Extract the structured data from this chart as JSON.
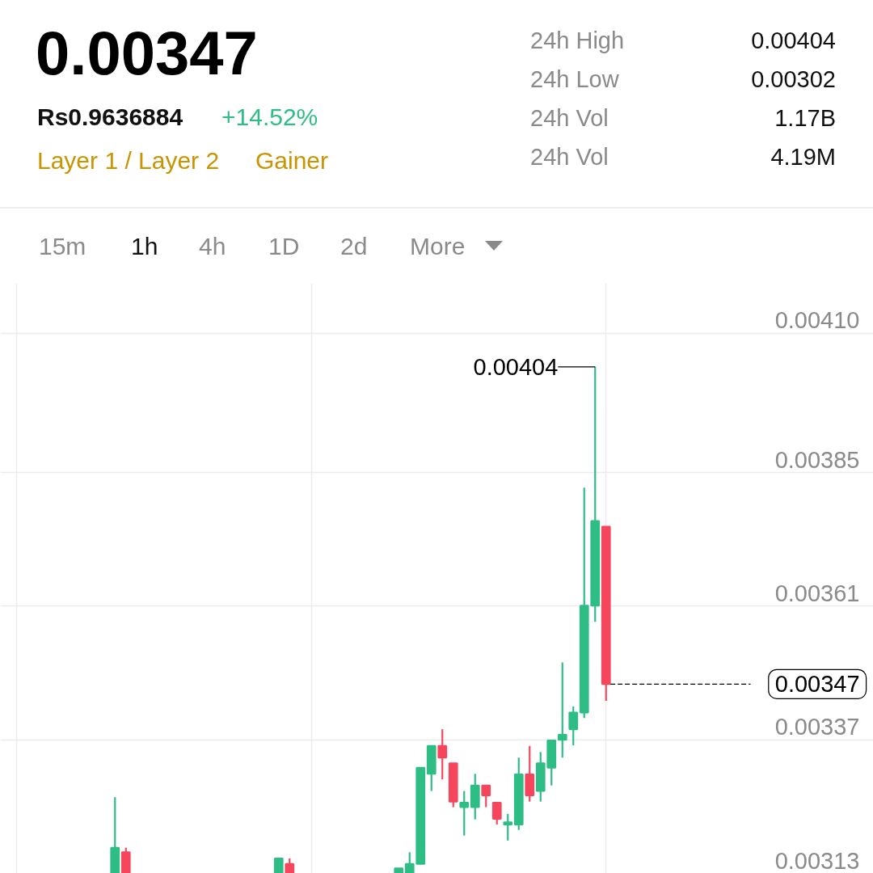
{
  "chart_data": {
    "type": "candlestick",
    "title": "0.00347",
    "categories": [
      null,
      null,
      null,
      null,
      null,
      null,
      null,
      null,
      null,
      null,
      null,
      null,
      null,
      null,
      null,
      null,
      null,
      null,
      null,
      null,
      null,
      null,
      null,
      null,
      null,
      null,
      null,
      null,
      null,
      null,
      null,
      null,
      null,
      null,
      null,
      null,
      null,
      null,
      null,
      null,
      null,
      null,
      null,
      null,
      null,
      null,
      null,
      null,
      null,
      null,
      null,
      null,
      null,
      null,
      null,
      null,
      null,
      null,
      null,
      null,
      null,
      null,
      null,
      null,
      null,
      null,
      null,
      null,
      null,
      null,
      null,
      null,
      null,
      null,
      null,
      null,
      null,
      null,
      null,
      null
    ],
    "ohlc": [
      null,
      null,
      null,
      null,
      null,
      null,
      null,
      null,
      null,
      null,
      [
        0.00313,
        0.003267,
        0.00313,
        0.003176
      ],
      [
        0.003168,
        0.003176,
        0.00313,
        0.00313
      ],
      null,
      null,
      null,
      null,
      null,
      null,
      null,
      null,
      null,
      null,
      null,
      null,
      null,
      [
        0.00313,
        0.003157,
        0.00313,
        0.003157
      ],
      [
        0.003147,
        0.003157,
        0.00313,
        0.00313
      ],
      null,
      null,
      null,
      null,
      null,
      null,
      null,
      null,
      null,
      [
        0.00313,
        0.003139,
        0.00313,
        0.003139
      ],
      [
        0.00313,
        0.003168,
        0.00313,
        0.003147
      ],
      [
        0.003147,
        0.00332,
        0.003147,
        0.00332
      ],
      [
        0.003309,
        0.003359,
        0.003278,
        0.003359
      ],
      [
        0.003359,
        0.003389,
        0.003299,
        0.003338
      ],
      [
        0.003328,
        0.003328,
        0.003249,
        0.003259
      ],
      [
        0.003249,
        0.003278,
        0.003198,
        0.003257
      ],
      [
        0.003249,
        0.003309,
        0.003227,
        0.003288
      ],
      [
        0.003288,
        0.003288,
        0.003249,
        0.00327
      ],
      [
        0.003257,
        0.003257,
        0.003218,
        0.003228
      ],
      [
        0.003218,
        0.003237,
        0.003189,
        0.003222
      ],
      [
        0.003218,
        0.003338,
        0.003208,
        0.003308
      ],
      [
        0.003308,
        0.003359,
        0.003259,
        0.00327
      ],
      [
        0.003278,
        0.003348,
        0.003259,
        0.003328
      ],
      [
        0.00332,
        0.003369,
        0.003288,
        0.003369
      ],
      [
        0.00337,
        0.003509,
        0.003338,
        0.003379
      ],
      [
        0.003389,
        0.00343,
        0.00336,
        0.003419
      ],
      [
        0.003419,
        0.003823,
        0.003409,
        0.003611
      ],
      [
        0.003611,
        0.00404,
        0.003582,
        0.003763
      ],
      [
        0.003753,
        0.003753,
        0.00344,
        0.00347
      ],
      null,
      null,
      null,
      null,
      null,
      null,
      null,
      null,
      null,
      null,
      null,
      null,
      null,
      null,
      null,
      null,
      null,
      null,
      null,
      null,
      null,
      null,
      null,
      null
    ],
    "colors": [
      null,
      null,
      null,
      null,
      null,
      null,
      null,
      null,
      null,
      null,
      "#2ebd85",
      "#f6465d",
      null,
      null,
      null,
      null,
      null,
      null,
      null,
      null,
      null,
      null,
      null,
      null,
      null,
      "#2ebd85",
      "#f6465d",
      null,
      null,
      null,
      null,
      null,
      null,
      null,
      null,
      null,
      "#2ebd85",
      "#2ebd85",
      "#2ebd85",
      "#2ebd85",
      "#f6465d",
      "#f6465d",
      "#2ebd85",
      "#2ebd85",
      "#f6465d",
      "#f6465d",
      "#2ebd85",
      "#2ebd85",
      "#f6465d",
      "#2ebd85",
      "#2ebd85",
      "#2ebd85",
      "#2ebd85",
      "#2ebd85",
      "#2ebd85",
      "#f6465d",
      null,
      null,
      null,
      null,
      null,
      null,
      null,
      null,
      null,
      null,
      null,
      null,
      null,
      null,
      null,
      null,
      null,
      null,
      null,
      null,
      null,
      null,
      null,
      null
    ],
    "ylim": [
      0.00313,
      0.00419
    ],
    "yticks": [
      0.00313,
      0.00337,
      0.00361,
      0.00385,
      {
        "value": 0.0041,
        "label": "0.00410"
      }
    ],
    "grid": true,
    "ref_lines": [
      {
        "axis": "y",
        "value": 0.00347,
        "label": "0.00347",
        "line_style": "dashed",
        "color": "#000000"
      }
    ],
    "annotations": [
      "Rs0.9636884",
      "+14.52%",
      "Layer 1 / Layer 2",
      "Gainer",
      "24h High",
      "0.00404",
      "24h Low",
      "0.00302",
      "24h Vol",
      "1.17B",
      "24h Vol",
      "4.19M",
      "15m",
      "1h",
      "4h",
      "1D",
      "2d",
      "More",
      "0.00404"
    ]
  }
}
